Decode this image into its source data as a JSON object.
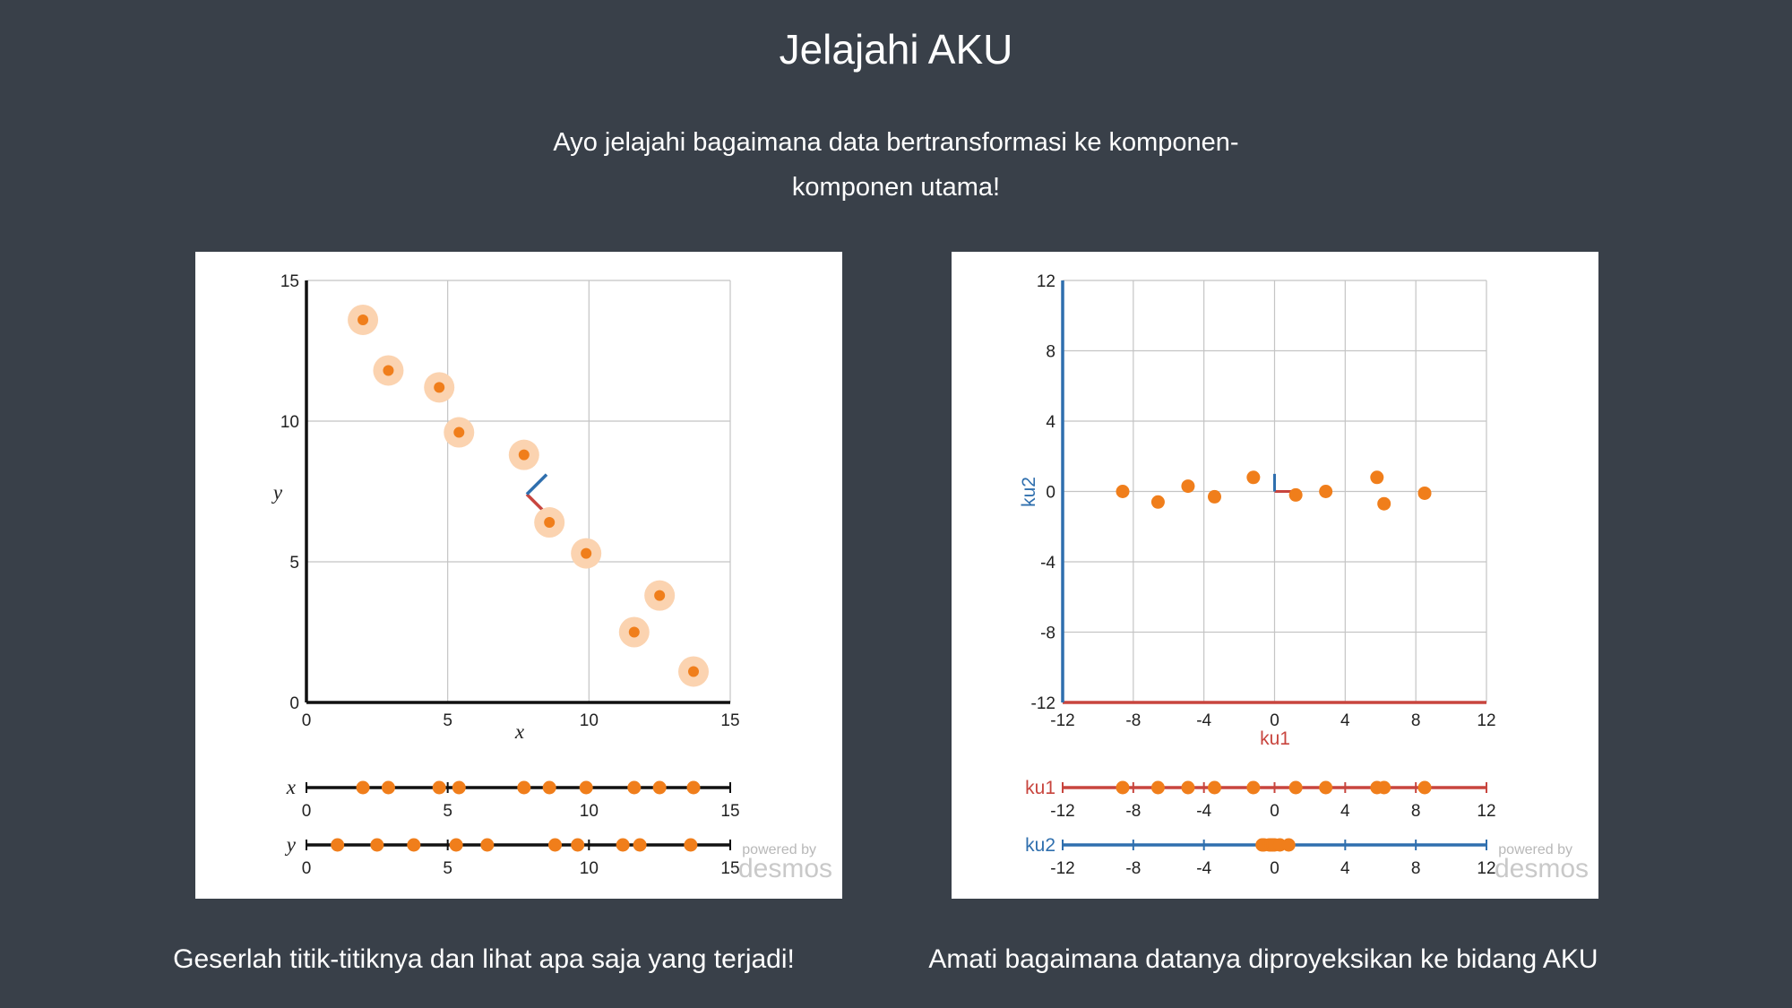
{
  "header": {
    "title": "Jelajahi AKU",
    "subtitle": "Ayo jelajahi bagaimana data bertransformasi ke komponen-komponen utama!"
  },
  "colors": {
    "background": "#394049",
    "point": "#f07e1b",
    "point_halo": "#fbd3b0",
    "pc1": "#c8453e",
    "pc2": "#2f6fae"
  },
  "watermark": {
    "powered_by": "powered by",
    "brand": "desmos"
  },
  "captions": {
    "left": "Geserlah titik-titiknya dan lihat apa saja yang terjadi!",
    "right": "Amati bagaimana datanya diproyeksikan ke bidang AKU"
  },
  "chart_data": [
    {
      "type": "scatter",
      "title": "",
      "xlabel": "x",
      "ylabel": "y",
      "xlim": [
        0,
        15
      ],
      "ylim": [
        0,
        15
      ],
      "xticks": [
        0,
        5,
        10,
        15
      ],
      "yticks": [
        0,
        5,
        10,
        15
      ],
      "grid": true,
      "points": [
        {
          "x": 2.0,
          "y": 13.6
        },
        {
          "x": 2.9,
          "y": 11.8
        },
        {
          "x": 4.7,
          "y": 11.2
        },
        {
          "x": 5.4,
          "y": 9.6
        },
        {
          "x": 7.7,
          "y": 8.8
        },
        {
          "x": 8.6,
          "y": 6.4
        },
        {
          "x": 9.9,
          "y": 5.3
        },
        {
          "x": 12.5,
          "y": 3.8
        },
        {
          "x": 11.6,
          "y": 2.5
        },
        {
          "x": 13.7,
          "y": 1.1
        }
      ],
      "pc_origin": {
        "x": 7.8,
        "y": 7.4
      },
      "pc1_dir": {
        "x": 0.7,
        "y": -0.7
      },
      "pc2_dir": {
        "x": 0.7,
        "y": 0.7
      },
      "projections": {
        "x_axis": {
          "label": "x",
          "ticks": [
            0,
            5,
            10,
            15
          ],
          "values": [
            2.0,
            2.9,
            4.7,
            5.4,
            7.7,
            8.6,
            9.9,
            11.6,
            12.5,
            13.7
          ]
        },
        "y_axis": {
          "label": "y",
          "ticks": [
            0,
            5,
            10,
            15
          ],
          "values": [
            1.1,
            2.5,
            3.8,
            5.3,
            6.4,
            8.8,
            9.6,
            11.2,
            11.8,
            13.6
          ]
        }
      }
    },
    {
      "type": "scatter",
      "title": "",
      "xlabel": "ku1",
      "ylabel": "ku2",
      "xlim": [
        -12,
        12
      ],
      "ylim": [
        -12,
        12
      ],
      "xticks": [
        -12,
        -8,
        -4,
        0,
        4,
        8,
        12
      ],
      "yticks": [
        -12,
        -8,
        -4,
        0,
        4,
        8,
        12
      ],
      "grid": true,
      "points": [
        {
          "x": -8.6,
          "y": 0.0
        },
        {
          "x": -6.6,
          "y": -0.6
        },
        {
          "x": -4.9,
          "y": 0.3
        },
        {
          "x": -3.4,
          "y": -0.3
        },
        {
          "x": -1.2,
          "y": 0.8
        },
        {
          "x": 1.2,
          "y": -0.2
        },
        {
          "x": 2.9,
          "y": 0.0
        },
        {
          "x": 5.8,
          "y": 0.8
        },
        {
          "x": 6.2,
          "y": -0.7
        },
        {
          "x": 8.5,
          "y": -0.1
        }
      ],
      "projections": {
        "x_axis": {
          "label": "ku1",
          "ticks": [
            -12,
            -8,
            -4,
            0,
            4,
            8,
            12
          ],
          "values": [
            -8.6,
            -6.6,
            -4.9,
            -3.4,
            -1.2,
            1.2,
            2.9,
            5.8,
            6.2,
            8.5
          ]
        },
        "y_axis": {
          "label": "ku2",
          "ticks": [
            -12,
            -8,
            -4,
            0,
            4,
            8,
            12
          ],
          "values": [
            -0.7,
            -0.6,
            -0.3,
            -0.2,
            -0.1,
            0.0,
            0.3,
            0.8
          ]
        }
      }
    }
  ]
}
